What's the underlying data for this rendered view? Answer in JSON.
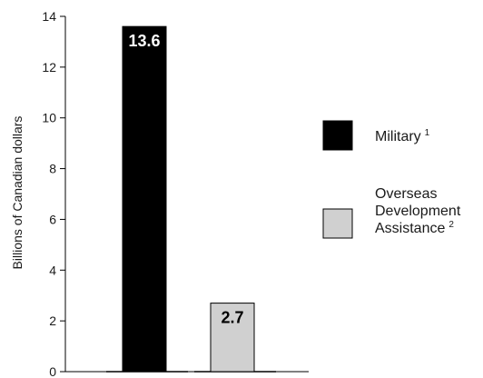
{
  "chart_data": {
    "type": "bar",
    "title": "",
    "xlabel": "",
    "ylabel": "Billions of Canadian dollars",
    "ylim": [
      0,
      14
    ],
    "yticks": [
      0,
      2,
      4,
      6,
      8,
      10,
      12,
      14
    ],
    "grid": false,
    "legend_position": "right",
    "categories": [
      "Military",
      "Overseas Development Assistance"
    ],
    "values": [
      13.6,
      2.7
    ],
    "data_labels": [
      "13.6",
      "2.7"
    ],
    "colors": [
      "#000000",
      "#d0d0d0"
    ],
    "label_colors": [
      "#ffffff",
      "#000000"
    ],
    "legend": [
      {
        "lines": [
          "Military"
        ],
        "superscript": "1",
        "color": "#000000"
      },
      {
        "lines": [
          "Overseas",
          "Development",
          "Assistance"
        ],
        "superscript": "2",
        "color": "#d0d0d0"
      }
    ]
  }
}
